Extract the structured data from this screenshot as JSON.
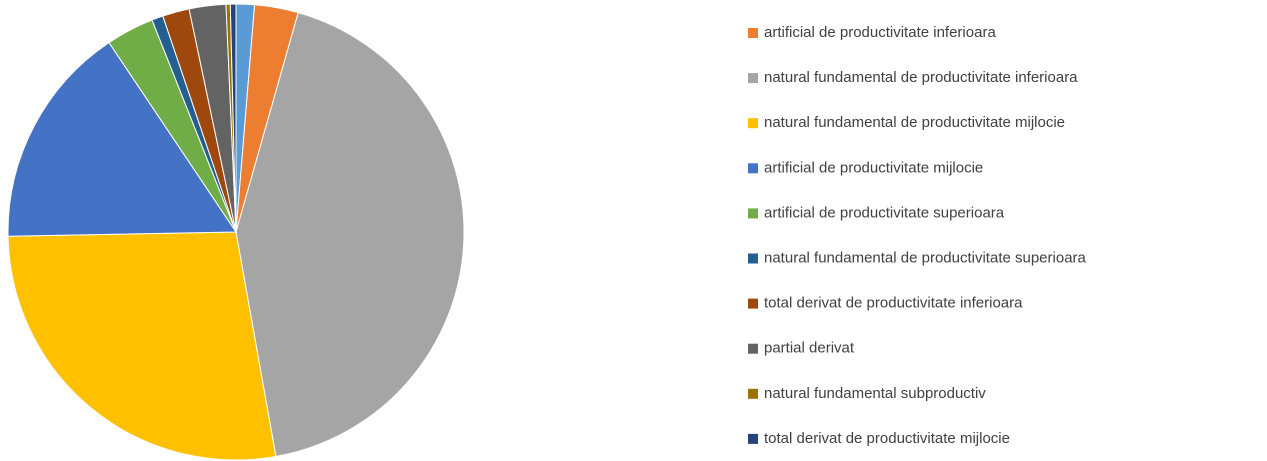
{
  "chart_data": {
    "type": "pie",
    "categories": [
      null,
      "artificial de productivitate inferioara",
      "natural fundamental de productivitate inferioara",
      "natural fundamental de productivitate mijlocie",
      "artificial de productivitate mijlocie",
      "artificial de productivitate superioara",
      "natural fundamental de productivitate superioara",
      "total derivat de productivitate inferioara",
      "partial derivat",
      "natural fundamental subproductiv",
      "total derivat de productivitate mijlocie"
    ],
    "values": [
      1.3,
      3.1,
      42.8,
      27.5,
      15.9,
      3.4,
      0.8,
      1.9,
      2.6,
      0.3,
      0.4
    ],
    "colors": [
      "#5b9bd5",
      "#ed7d31",
      "#a5a5a5",
      "#ffc000",
      "#4472c4",
      "#70ad47",
      "#255e91",
      "#9e480e",
      "#636363",
      "#997300",
      "#264478"
    ],
    "legend": "right"
  }
}
